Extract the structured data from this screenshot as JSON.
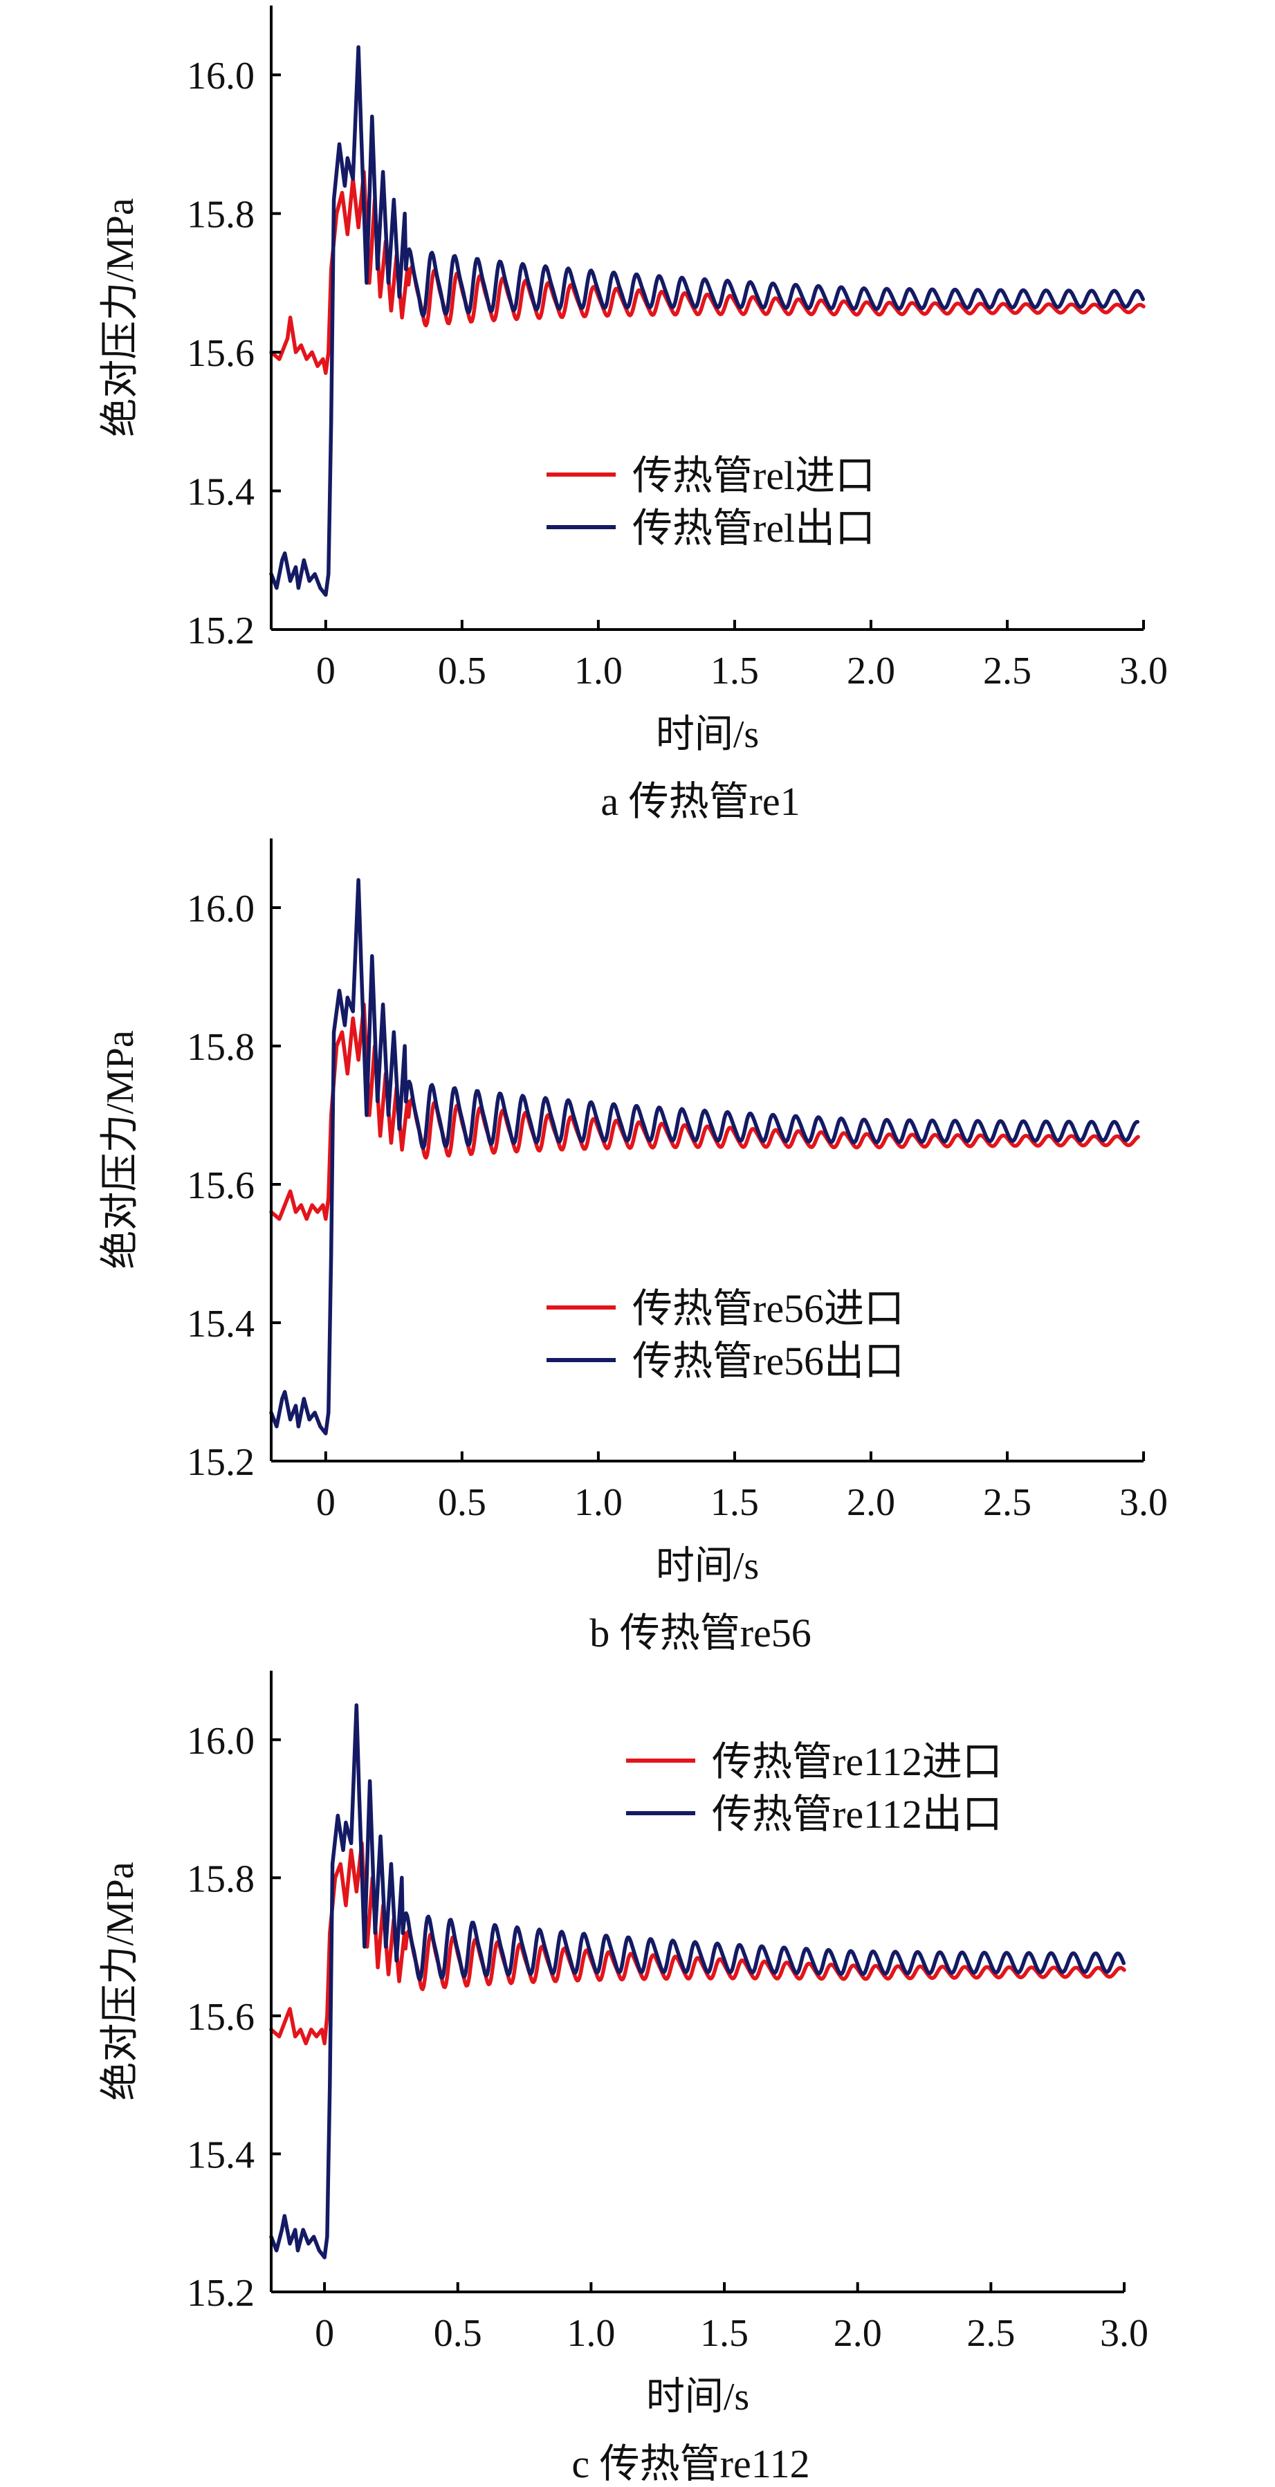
{
  "colors": {
    "inlet": "#e3151b",
    "outlet": "#141a63",
    "axis": "#000000"
  },
  "chart_data": [
    {
      "type": "line",
      "caption": "a  传热管re1",
      "xlabel": "时间/s",
      "ylabel": "绝对压力/MPa",
      "xlim": [
        -0.2,
        3.0
      ],
      "ylim": [
        15.2,
        16.1
      ],
      "xticks": [
        0,
        0.5,
        1.0,
        1.5,
        2.0,
        2.5,
        3.0
      ],
      "xtick_labels": [
        "0",
        "0.5",
        "1.0",
        "1.5",
        "2.0",
        "2.5",
        "3.0"
      ],
      "yticks": [
        15.2,
        15.4,
        15.6,
        15.8,
        16.0
      ],
      "ytick_labels": [
        "15.2",
        "15.4",
        "15.6",
        "15.8",
        "16.0"
      ],
      "legend_position": "center-right",
      "series": [
        {
          "name": "传热管rel进口",
          "key": "inlet",
          "pre_level": 15.6,
          "x": [
            -0.2,
            -0.17,
            -0.14,
            -0.13,
            -0.11,
            -0.09,
            -0.07,
            -0.05,
            -0.03,
            -0.01,
            0.0,
            0.01,
            0.02,
            0.04,
            0.06,
            0.08,
            0.1,
            0.12,
            0.14,
            0.16,
            0.18,
            0.2,
            0.22,
            0.24,
            0.26,
            0.28,
            0.3
          ],
          "y": [
            15.6,
            15.59,
            15.62,
            15.65,
            15.6,
            15.61,
            15.59,
            15.6,
            15.58,
            15.59,
            15.57,
            15.6,
            15.72,
            15.8,
            15.83,
            15.77,
            15.85,
            15.78,
            15.86,
            15.7,
            15.82,
            15.68,
            15.76,
            15.66,
            15.74,
            15.65,
            15.72
          ],
          "osc_base": 15.68,
          "osc_base_end": 15.663,
          "osc_amp": 0.04,
          "osc_amp_end": 0.004,
          "osc_period": 0.0833,
          "end": 3.0
        },
        {
          "name": "传热管rel出口",
          "key": "outlet",
          "pre_level": 15.28,
          "x": [
            -0.2,
            -0.18,
            -0.16,
            -0.15,
            -0.13,
            -0.11,
            -0.1,
            -0.08,
            -0.06,
            -0.04,
            -0.02,
            0.0,
            0.01,
            0.02,
            0.03,
            0.05,
            0.07,
            0.08,
            0.1,
            0.12,
            0.13,
            0.15,
            0.17,
            0.19,
            0.21,
            0.23,
            0.25,
            0.27,
            0.29
          ],
          "y": [
            15.28,
            15.26,
            15.3,
            15.31,
            15.27,
            15.29,
            15.26,
            15.3,
            15.27,
            15.28,
            15.26,
            15.25,
            15.28,
            15.5,
            15.82,
            15.9,
            15.84,
            15.88,
            15.85,
            16.04,
            15.92,
            15.7,
            15.94,
            15.72,
            15.86,
            15.7,
            15.82,
            15.68,
            15.8
          ],
          "osc_base": 15.7,
          "osc_base_end": 15.677,
          "osc_amp": 0.045,
          "osc_amp_end": 0.01,
          "osc_period": 0.0833,
          "end": 3.0
        }
      ]
    },
    {
      "type": "line",
      "caption": "b  传热管re56",
      "xlabel": "时间/s",
      "ylabel": "绝对压力/MPa",
      "xlim": [
        -0.2,
        3.0
      ],
      "ylim": [
        15.2,
        16.1
      ],
      "xticks": [
        0,
        0.5,
        1.0,
        1.5,
        2.0,
        2.5,
        3.0
      ],
      "xtick_labels": [
        "0",
        "0.5",
        "1.0",
        "1.5",
        "2.0",
        "2.5",
        "3.0"
      ],
      "yticks": [
        15.2,
        15.4,
        15.6,
        15.8,
        16.0
      ],
      "ytick_labels": [
        "15.2",
        "15.4",
        "15.6",
        "15.8",
        "16.0"
      ],
      "legend_position": "center-right",
      "series": [
        {
          "name": "传热管re56进口",
          "key": "inlet",
          "pre_level": 15.56,
          "x": [
            -0.2,
            -0.17,
            -0.14,
            -0.13,
            -0.11,
            -0.09,
            -0.07,
            -0.05,
            -0.03,
            -0.01,
            0.0,
            0.01,
            0.02,
            0.04,
            0.06,
            0.08,
            0.1,
            0.12,
            0.14,
            0.16,
            0.18,
            0.2,
            0.22,
            0.24,
            0.26,
            0.28,
            0.3
          ],
          "y": [
            15.56,
            15.55,
            15.58,
            15.59,
            15.56,
            15.57,
            15.55,
            15.57,
            15.56,
            15.57,
            15.55,
            15.58,
            15.7,
            15.8,
            15.82,
            15.76,
            15.84,
            15.78,
            15.86,
            15.7,
            15.8,
            15.67,
            15.76,
            15.66,
            15.74,
            15.65,
            15.72
          ],
          "osc_base": 15.68,
          "osc_base_end": 15.663,
          "osc_amp": 0.04,
          "osc_amp_end": 0.005,
          "osc_period": 0.0833,
          "end": 2.98
        },
        {
          "name": "传热管re56出口",
          "key": "outlet",
          "pre_level": 15.27,
          "x": [
            -0.2,
            -0.18,
            -0.16,
            -0.15,
            -0.13,
            -0.11,
            -0.1,
            -0.08,
            -0.06,
            -0.04,
            -0.02,
            0.0,
            0.01,
            0.02,
            0.03,
            0.05,
            0.07,
            0.08,
            0.1,
            0.12,
            0.13,
            0.15,
            0.17,
            0.19,
            0.21,
            0.23,
            0.25,
            0.27,
            0.29
          ],
          "y": [
            15.27,
            15.25,
            15.29,
            15.3,
            15.26,
            15.28,
            15.25,
            15.29,
            15.26,
            15.27,
            15.25,
            15.24,
            15.27,
            15.5,
            15.82,
            15.88,
            15.83,
            15.87,
            15.85,
            16.04,
            15.92,
            15.7,
            15.93,
            15.72,
            15.86,
            15.7,
            15.82,
            15.68,
            15.8
          ],
          "osc_base": 15.7,
          "osc_base_end": 15.677,
          "osc_amp": 0.045,
          "osc_amp_end": 0.012,
          "osc_period": 0.0833,
          "end": 2.98
        }
      ]
    },
    {
      "type": "line",
      "caption": "c  传热管re112",
      "xlabel": "时间/s",
      "ylabel": "绝对压力/MPa",
      "xlim": [
        -0.2,
        3.0
      ],
      "ylim": [
        15.2,
        16.1
      ],
      "xticks": [
        0,
        0.5,
        1.0,
        1.5,
        2.0,
        2.5,
        3.0
      ],
      "xtick_labels": [
        "0",
        "0.5",
        "1.0",
        "1.5",
        "2.0",
        "2.5",
        "3.0"
      ],
      "yticks": [
        15.2,
        15.4,
        15.6,
        15.8,
        16.0
      ],
      "ytick_labels": [
        "15.2",
        "15.4",
        "15.6",
        "15.8",
        "16.0"
      ],
      "legend_position": "top-right",
      "series": [
        {
          "name": "传热管re112进口",
          "key": "inlet",
          "pre_level": 15.58,
          "x": [
            -0.2,
            -0.17,
            -0.14,
            -0.13,
            -0.11,
            -0.09,
            -0.07,
            -0.05,
            -0.03,
            -0.01,
            0.0,
            0.01,
            0.02,
            0.04,
            0.06,
            0.08,
            0.1,
            0.12,
            0.14,
            0.16,
            0.18,
            0.2,
            0.22,
            0.24,
            0.26,
            0.28,
            0.3
          ],
          "y": [
            15.58,
            15.57,
            15.6,
            15.61,
            15.57,
            15.58,
            15.56,
            15.58,
            15.57,
            15.58,
            15.56,
            15.6,
            15.72,
            15.8,
            15.82,
            15.76,
            15.84,
            15.78,
            15.85,
            15.7,
            15.8,
            15.67,
            15.76,
            15.66,
            15.74,
            15.65,
            15.72
          ],
          "osc_base": 15.68,
          "osc_base_end": 15.663,
          "osc_amp": 0.04,
          "osc_amp_end": 0.005,
          "osc_period": 0.0833,
          "end": 3.0
        },
        {
          "name": "传热管re112出口",
          "key": "outlet",
          "pre_level": 15.28,
          "x": [
            -0.2,
            -0.18,
            -0.16,
            -0.15,
            -0.13,
            -0.11,
            -0.1,
            -0.08,
            -0.06,
            -0.04,
            -0.02,
            0.0,
            0.01,
            0.02,
            0.03,
            0.05,
            0.07,
            0.08,
            0.1,
            0.12,
            0.13,
            0.15,
            0.17,
            0.19,
            0.21,
            0.23,
            0.25,
            0.27,
            0.29
          ],
          "y": [
            15.28,
            15.26,
            15.29,
            15.31,
            15.27,
            15.29,
            15.26,
            15.29,
            15.27,
            15.28,
            15.26,
            15.25,
            15.28,
            15.5,
            15.82,
            15.89,
            15.84,
            15.88,
            15.85,
            16.05,
            15.92,
            15.7,
            15.94,
            15.72,
            15.86,
            15.7,
            15.82,
            15.68,
            15.8
          ],
          "osc_base": 15.7,
          "osc_base_end": 15.677,
          "osc_amp": 0.045,
          "osc_amp_end": 0.012,
          "osc_period": 0.0833,
          "end": 3.0
        }
      ]
    }
  ]
}
